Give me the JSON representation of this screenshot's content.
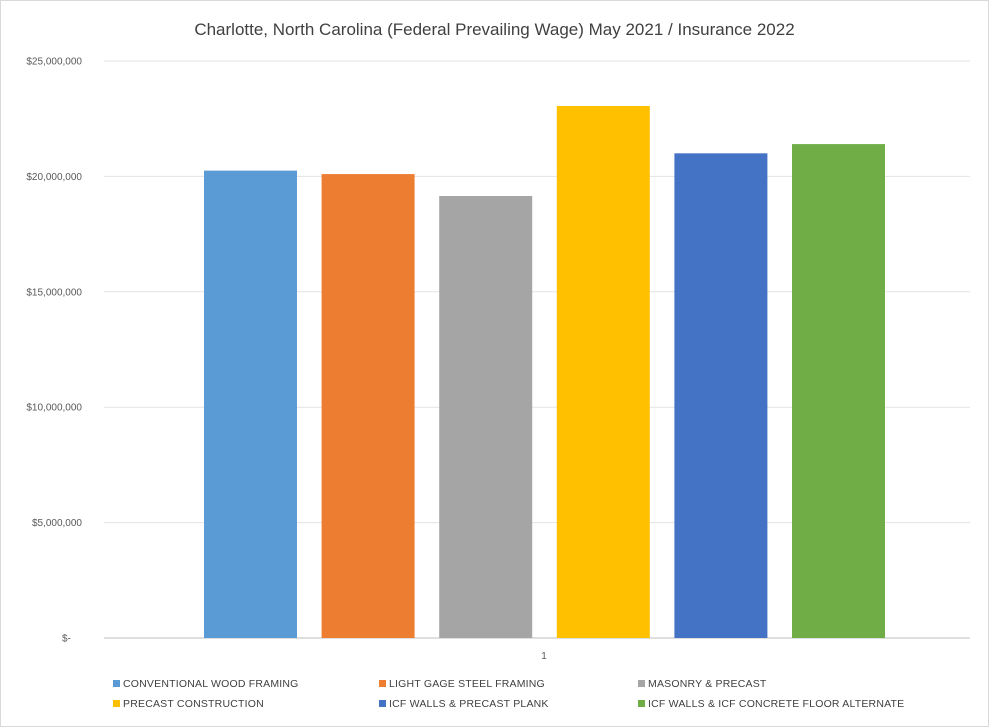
{
  "chart_data": {
    "type": "bar",
    "title": "Charlotte, North Carolina (Federal Prevailing Wage) May 2021 / Insurance 2022",
    "xlabel": "",
    "ylabel": "",
    "categories": [
      "1"
    ],
    "ylim": [
      0,
      25000000
    ],
    "yticks": [
      "$-",
      "$5,000,000",
      "$10,000,000",
      "$15,000,000",
      "$20,000,000",
      "$25,000,000"
    ],
    "grid": true,
    "legend_position": "bottom",
    "series": [
      {
        "name": "CONVENTIONAL WOOD FRAMING",
        "values": [
          20250000
        ],
        "color": "#5b9bd5"
      },
      {
        "name": "LIGHT GAGE STEEL FRAMING",
        "values": [
          20100000
        ],
        "color": "#ed7d31"
      },
      {
        "name": "MASONRY & PRECAST",
        "values": [
          19150000
        ],
        "color": "#a5a5a5"
      },
      {
        "name": "PRECAST CONSTRUCTION",
        "values": [
          23050000
        ],
        "color": "#ffc000"
      },
      {
        "name": "ICF WALLS & PRECAST PLANK",
        "values": [
          21000000
        ],
        "color": "#4472c4"
      },
      {
        "name": "ICF WALLS & ICF CONCRETE FLOOR ALTERNATE",
        "values": [
          21400000
        ],
        "color": "#70ad47"
      }
    ]
  }
}
